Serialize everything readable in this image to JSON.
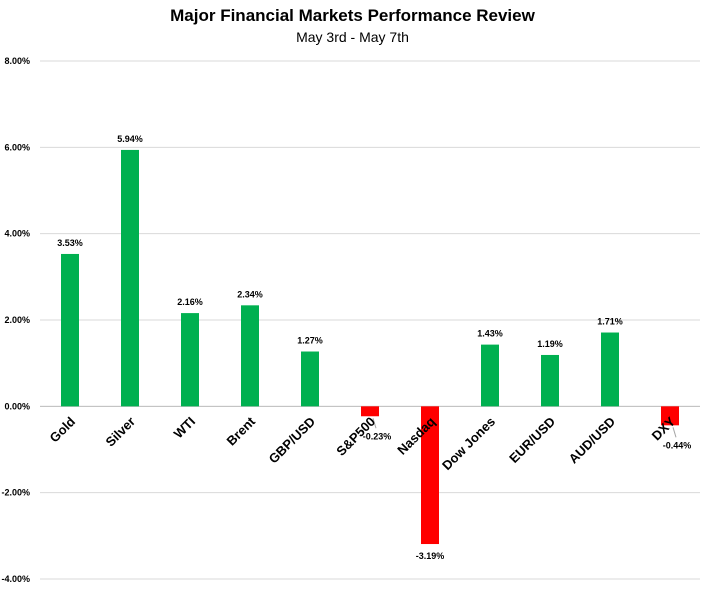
{
  "chart_data": {
    "type": "bar",
    "title": "Major Financial Markets Performance Review",
    "subtitle": "May 3rd - May 7th",
    "categories": [
      "Gold",
      "Silver",
      "WTI",
      "Brent",
      "GBP/USD",
      "S&P500",
      "Nasdaq",
      "Dow Jones",
      "EUR/USD",
      "AUD/USD",
      "DXY"
    ],
    "values": [
      3.53,
      5.94,
      2.16,
      2.34,
      1.27,
      -0.23,
      -3.19,
      1.43,
      1.19,
      1.71,
      -0.44
    ],
    "data_labels": [
      "3.53%",
      "5.94%",
      "2.16%",
      "2.34%",
      "1.27%",
      "-0.23%",
      "-3.19%",
      "1.43%",
      "1.19%",
      "1.71%",
      "-0.44%"
    ],
    "ylim": [
      -4,
      8
    ],
    "yticks": [
      8,
      6,
      4,
      2,
      0,
      -2,
      -4
    ],
    "ytick_labels": [
      "8.00%",
      "6.00%",
      "4.00%",
      "2.00%",
      "0.00%",
      "-2.00%",
      "-4.00%"
    ],
    "grid": true,
    "legend": "none",
    "colors": {
      "positive": "#00b050",
      "negative": "#ff0000",
      "grid": "#d9d9d9"
    },
    "xlabel": "",
    "ylabel": ""
  }
}
